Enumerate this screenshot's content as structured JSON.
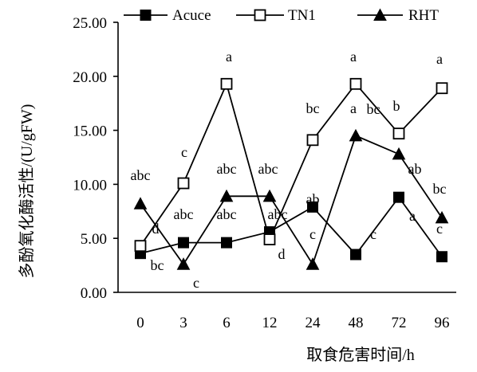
{
  "chart_data": {
    "type": "line",
    "xlabel": "取食危害时间/h",
    "ylabel": "多酚氧化酶活性/(U/gFW)",
    "categories": [
      "0",
      "3",
      "6",
      "12",
      "24",
      "48",
      "72",
      "96"
    ],
    "ylim": [
      0,
      25
    ],
    "yticks": [
      "0.00",
      "5.00",
      "10.00",
      "15.00",
      "20.00",
      "25.00"
    ],
    "ytick_values": [
      0,
      5,
      10,
      15,
      20,
      25
    ],
    "grid": false,
    "legend": "top",
    "series": [
      {
        "name": "Acuce",
        "marker": "filled-square",
        "values": [
          3.6,
          4.6,
          4.6,
          5.6,
          7.9,
          3.5,
          8.8,
          3.3
        ],
        "labels": [
          "bc",
          "",
          "",
          "",
          "ab",
          "c",
          "a",
          "c"
        ]
      },
      {
        "name": "TN1",
        "marker": "open-square",
        "values": [
          4.3,
          10.1,
          19.3,
          4.9,
          14.1,
          19.3,
          14.7,
          18.9
        ],
        "labels": [
          "d",
          "c",
          "a",
          "d",
          "bc",
          "a",
          "b",
          "a"
        ]
      },
      {
        "name": "RHT",
        "marker": "filled-triangle",
        "values": [
          8.2,
          2.6,
          8.9,
          8.9,
          2.6,
          14.5,
          12.8,
          6.9
        ],
        "labels": [
          "abc",
          "c",
          "abc",
          "abc",
          "c",
          "a",
          "ab",
          "bc"
        ]
      }
    ],
    "extra_annotations": [
      "abc",
      "abc",
      "abc",
      "bc"
    ]
  }
}
